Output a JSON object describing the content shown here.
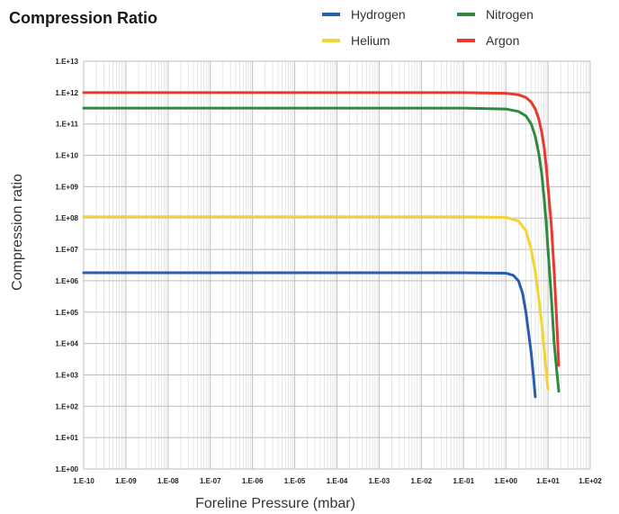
{
  "chart_data": {
    "type": "line",
    "title": "Compression Ratio",
    "xlabel": "Foreline Pressure (mbar)",
    "ylabel": "Compression ratio",
    "x_scale": "log",
    "y_scale": "log",
    "xlim": [
      1e-10,
      100
    ],
    "ylim": [
      1,
      10000000000000.0
    ],
    "grid": true,
    "legend_position": "top-right",
    "x_ticks": [
      "1.E-10",
      "1.E-09",
      "1.E-08",
      "1.E-07",
      "1.E-06",
      "1.E-05",
      "1.E-04",
      "1.E-03",
      "1.E-02",
      "1.E-01",
      "1.E+00",
      "1.E+01",
      "1.E+02"
    ],
    "y_ticks": [
      "1.E+00",
      "1.E+01",
      "1.E+02",
      "1.E+03",
      "1.E+04",
      "1.E+05",
      "1.E+06",
      "1.E+07",
      "1.E+08",
      "1.E+09",
      "1.E+10",
      "1.E+11",
      "1.E+12",
      "1.E+13"
    ],
    "series": [
      {
        "name": "Hydrogen",
        "color": "#2a5db0",
        "points": [
          [
            1e-10,
            1800000.0
          ],
          [
            0.1,
            1800000.0
          ],
          [
            1.0,
            1750000.0
          ],
          [
            1.5,
            1500000.0
          ],
          [
            2.0,
            1000000.0
          ],
          [
            2.5,
            400000.0
          ],
          [
            3.0,
            100000.0
          ],
          [
            3.5,
            20000.0
          ],
          [
            4.0,
            5000.0
          ],
          [
            4.5,
            1000.0
          ],
          [
            5.0,
            200.0
          ]
        ]
      },
      {
        "name": "Helium",
        "color": "#f2d530",
        "points": [
          [
            1e-10,
            110000000.0
          ],
          [
            0.1,
            110000000.0
          ],
          [
            1.0,
            105000000.0
          ],
          [
            2.0,
            80000000.0
          ],
          [
            3.0,
            40000000.0
          ],
          [
            4.0,
            10000000.0
          ],
          [
            5.0,
            2000000.0
          ],
          [
            6.0,
            300000.0
          ],
          [
            7.0,
            50000.0
          ],
          [
            8.0,
            8000.0
          ],
          [
            9.0,
            1500.0
          ],
          [
            10.0,
            350.0
          ]
        ]
      },
      {
        "name": "Nitrogen",
        "color": "#2e8b3e",
        "points": [
          [
            1e-10,
            320000000000.0
          ],
          [
            0.1,
            320000000000.0
          ],
          [
            1.0,
            300000000000.0
          ],
          [
            2.0,
            250000000000.0
          ],
          [
            3.0,
            180000000000.0
          ],
          [
            4.0,
            100000000000.0
          ],
          [
            5.0,
            40000000000.0
          ],
          [
            6.0,
            12000000000.0
          ],
          [
            7.0,
            3000000000.0
          ],
          [
            8.0,
            500000000.0
          ],
          [
            9.0,
            80000000.0
          ],
          [
            10.0,
            10000000.0
          ],
          [
            12.0,
            300000.0
          ],
          [
            14.0,
            10000.0
          ],
          [
            16.0,
            1500.0
          ],
          [
            18.0,
            300.0
          ]
        ]
      },
      {
        "name": "Argon",
        "color": "#e8382f",
        "points": [
          [
            1e-10,
            1000000000000.0
          ],
          [
            0.1,
            1000000000000.0
          ],
          [
            1.0,
            950000000000.0
          ],
          [
            2.0,
            850000000000.0
          ],
          [
            3.0,
            700000000000.0
          ],
          [
            4.0,
            500000000000.0
          ],
          [
            5.0,
            300000000000.0
          ],
          [
            6.0,
            150000000000.0
          ],
          [
            7.0,
            60000000000.0
          ],
          [
            8.0,
            20000000000.0
          ],
          [
            9.0,
            5000000000.0
          ],
          [
            10.0,
            1000000000.0
          ],
          [
            12.0,
            60000000.0
          ],
          [
            14.0,
            2000000.0
          ],
          [
            16.0,
            60000.0
          ],
          [
            18.0,
            2000.0
          ]
        ]
      }
    ]
  }
}
